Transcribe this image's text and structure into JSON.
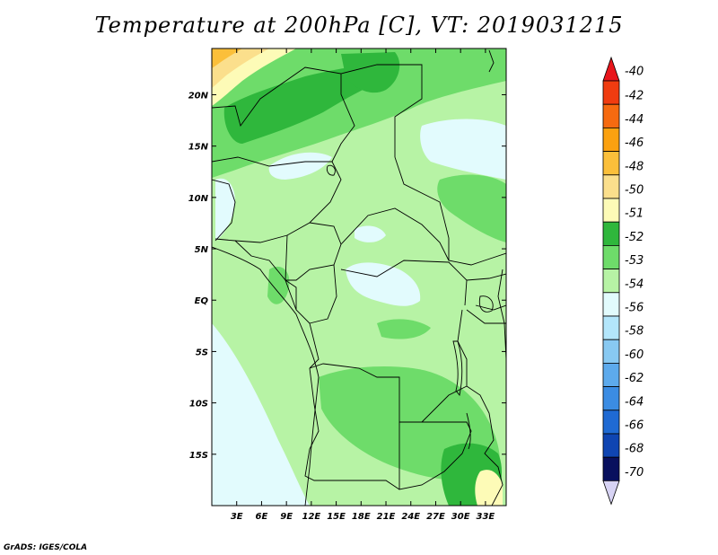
{
  "title": "Temperature at 200hPa [C], VT: 2019031215",
  "credit": "GrADS: IGES/COLA",
  "map": {
    "lon_range": [
      0,
      35.5
    ],
    "lat_range": [
      -20,
      24.5
    ],
    "lon_ticks": [
      "3E",
      "6E",
      "9E",
      "12E",
      "15E",
      "18E",
      "21E",
      "24E",
      "27E",
      "30E",
      "33E"
    ],
    "lon_values": [
      3,
      6,
      9,
      12,
      15,
      18,
      21,
      24,
      27,
      30,
      33
    ],
    "lat_ticks": [
      "20N",
      "15N",
      "10N",
      "5N",
      "EQ",
      "5S",
      "10S",
      "15S"
    ],
    "lat_values": [
      20,
      15,
      10,
      5,
      0,
      -5,
      -10,
      -15
    ]
  },
  "colorbar": {
    "labels": [
      "-40",
      "-42",
      "-44",
      "-46",
      "-48",
      "-50",
      "-51",
      "-52",
      "-53",
      "-54",
      "-56",
      "-58",
      "-60",
      "-62",
      "-64",
      "-66",
      "-68",
      "-70"
    ],
    "colors": [
      "#e8151b",
      "#f03c10",
      "#f66a10",
      "#fba110",
      "#fbbf3a",
      "#fbdf8c",
      "#fdfbb7",
      "#2fb73c",
      "#6edc6a",
      "#b7f3a5",
      "#e2fbfd",
      "#b3e6fb",
      "#88c9f2",
      "#5daaec",
      "#3b8ce3",
      "#1f6ad3",
      "#0f45b2",
      "#08105e",
      "#d7d3f4"
    ]
  },
  "legend_shading": {
    "c51": "#fdfbb7",
    "c50": "#fbdf8c",
    "c48": "#fbbf3a",
    "c52": "#2fb73c",
    "c53": "#6edc6a",
    "c54": "#b7f3a5",
    "c56": "#e2fbfd"
  }
}
